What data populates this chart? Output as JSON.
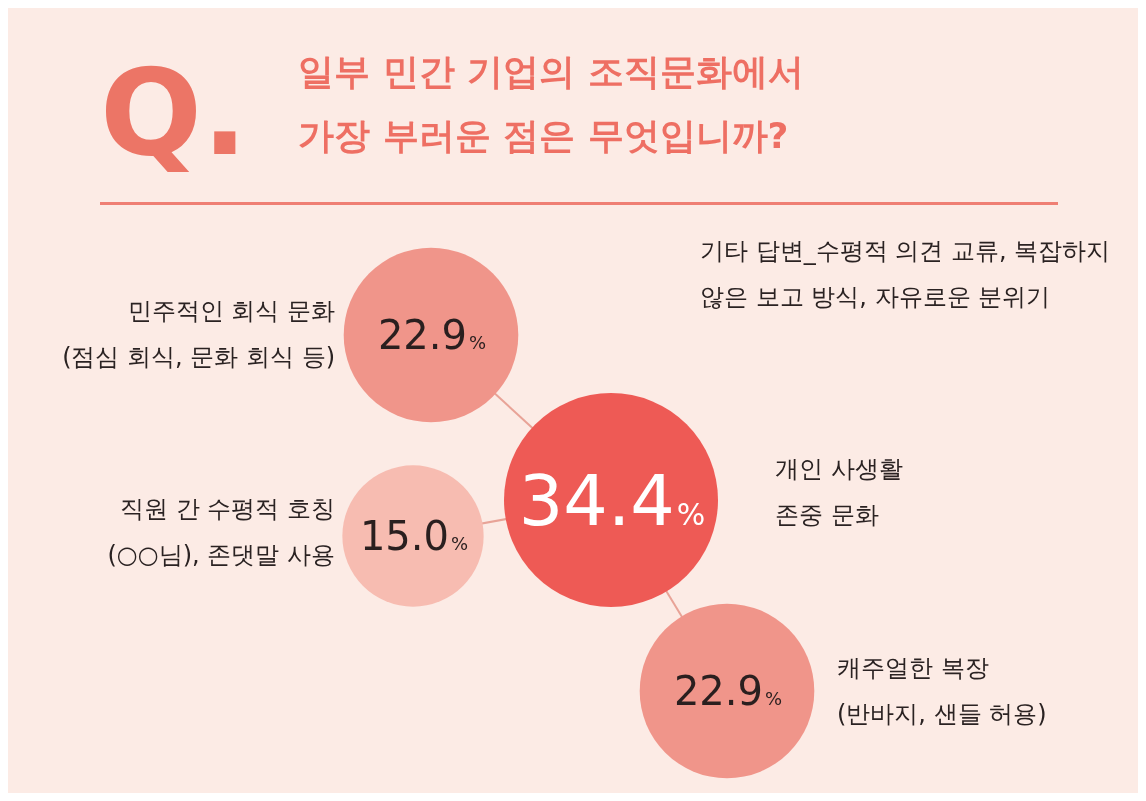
{
  "chart_data": {
    "type": "other",
    "title": "일부 민간 기업의 조직문화에서\n가장 부러운 점은 무엇입니까?",
    "categories": [
      "민주적인 회식 문화\n(점심 회식, 문화 회식 등)",
      "개인 사생활\n존중 문화",
      "직원 간 수평적 호칭\n(○○님), 존댓말 사용",
      "캐주얼한 복장\n(반바지, 샌들 허용)"
    ],
    "values": [
      22.9,
      34.4,
      15.0,
      22.9
    ],
    "value_labels": [
      "22.9%",
      "34.4%",
      "15.0%",
      "22.9%"
    ],
    "colors": [
      "#f0958a",
      "#ee5a55",
      "#f7bcb1",
      "#f0958a"
    ],
    "annotations": [
      "Q.",
      "기타 답변_수평적 의견 교류, 복잡하지\n않은 보고 방식, 자유로운 분위기"
    ]
  }
}
